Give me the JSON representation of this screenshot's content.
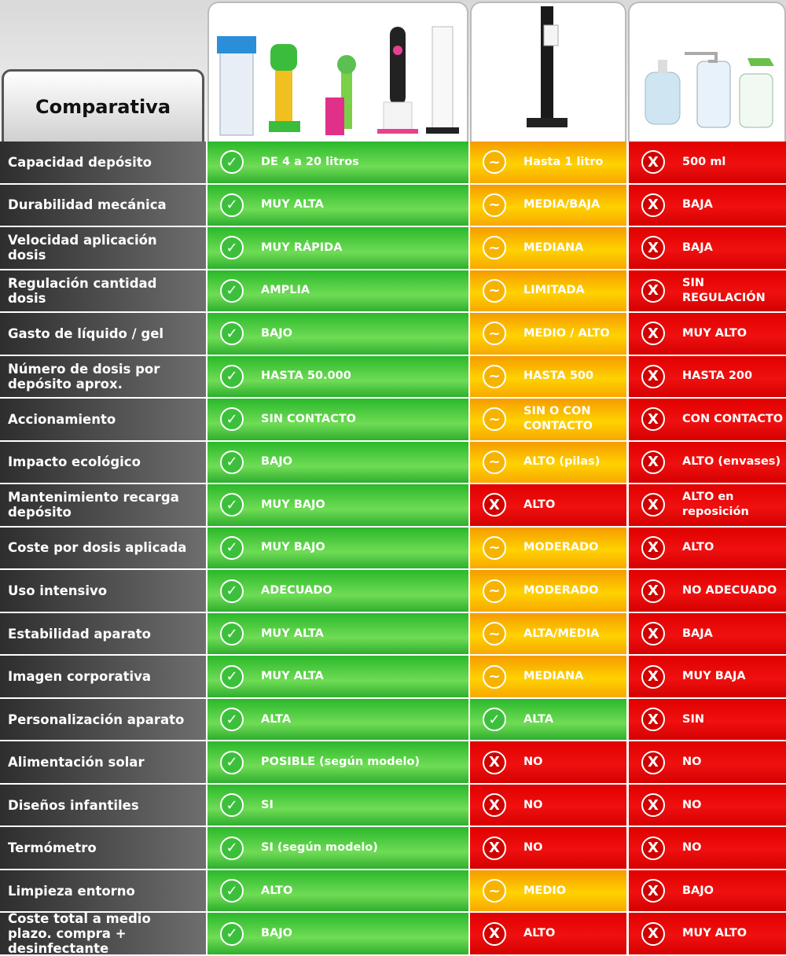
{
  "title": "Comparativa",
  "rows": [
    {
      "label": "Capacidad depósito",
      "cells": [
        {
          "icon": "✓",
          "text": "DE 4 a 20 litros"
        },
        {
          "icon": "~",
          "text": "Hasta 1 litro"
        },
        {
          "icon": "X",
          "text": "500 ml"
        }
      ]
    },
    {
      "label": "Durabilidad mecánica",
      "cells": [
        {
          "icon": "✓",
          "text": "MUY ALTA"
        },
        {
          "icon": "~",
          "text": "MEDIA/BAJA"
        },
        {
          "icon": "X",
          "text": "BAJA"
        }
      ]
    },
    {
      "label": "Velocidad aplicación dosis",
      "cells": [
        {
          "icon": "✓",
          "text": "MUY RÁPIDA"
        },
        {
          "icon": "~",
          "text": "MEDIANA"
        },
        {
          "icon": "X",
          "text": "BAJA"
        }
      ]
    },
    {
      "label": "Regulación cantidad dosis",
      "cells": [
        {
          "icon": "✓",
          "text": "AMPLIA"
        },
        {
          "icon": "~",
          "text": "LIMITADA"
        },
        {
          "icon": "X",
          "text": "SIN REGULACIÓN"
        }
      ]
    },
    {
      "label": "Gasto de líquido / gel",
      "cells": [
        {
          "icon": "✓",
          "text": "BAJO"
        },
        {
          "icon": "~",
          "text": "MEDIO / ALTO"
        },
        {
          "icon": "X",
          "text": "MUY ALTO"
        }
      ]
    },
    {
      "label": "Número de dosis por depósito aprox.",
      "cells": [
        {
          "icon": "✓",
          "text": "HASTA 50.000"
        },
        {
          "icon": "~",
          "text": "HASTA 500"
        },
        {
          "icon": "X",
          "text": "HASTA 200"
        }
      ]
    },
    {
      "label": "Accionamiento",
      "cells": [
        {
          "icon": "✓",
          "text": "SIN CONTACTO"
        },
        {
          "icon": "~",
          "text": "SIN O CON CONTACTO"
        },
        {
          "icon": "X",
          "text": "CON CONTACTO"
        }
      ]
    },
    {
      "label": "Impacto ecológico",
      "cells": [
        {
          "icon": "✓",
          "text": "BAJO"
        },
        {
          "icon": "~",
          "text": "ALTO (pilas)"
        },
        {
          "icon": "X",
          "text": "ALTO (envases)"
        }
      ]
    },
    {
      "label": "Mantenimiento recarga depósito",
      "cells": [
        {
          "icon": "✓",
          "text": "MUY BAJO"
        },
        {
          "icon": "X",
          "text": "ALTO"
        },
        {
          "icon": "X",
          "text": "ALTO en reposición"
        }
      ]
    },
    {
      "label": "Coste por dosis aplicada",
      "cells": [
        {
          "icon": "✓",
          "text": "MUY BAJO"
        },
        {
          "icon": "~",
          "text": "MODERADO"
        },
        {
          "icon": "X",
          "text": "ALTO"
        }
      ]
    },
    {
      "label": "Uso intensivo",
      "cells": [
        {
          "icon": "✓",
          "text": "ADECUADO"
        },
        {
          "icon": "~",
          "text": "MODERADO"
        },
        {
          "icon": "X",
          "text": "NO ADECUADO"
        }
      ]
    },
    {
      "label": "Estabilidad aparato",
      "cells": [
        {
          "icon": "✓",
          "text": "MUY ALTA"
        },
        {
          "icon": "~",
          "text": "ALTA/MEDIA"
        },
        {
          "icon": "X",
          "text": "BAJA"
        }
      ]
    },
    {
      "label": "Imagen corporativa",
      "cells": [
        {
          "icon": "✓",
          "text": "MUY ALTA"
        },
        {
          "icon": "~",
          "text": "MEDIANA"
        },
        {
          "icon": "X",
          "text": "MUY BAJA"
        }
      ]
    },
    {
      "label": "Personalización aparato",
      "cells": [
        {
          "icon": "✓",
          "text": "ALTA"
        },
        {
          "icon": "✓",
          "text": "ALTA"
        },
        {
          "icon": "X",
          "text": "SIN"
        }
      ]
    },
    {
      "label": "Alimentación solar",
      "cells": [
        {
          "icon": "✓",
          "text": "POSIBLE (según modelo)"
        },
        {
          "icon": "X",
          "text": "NO"
        },
        {
          "icon": "X",
          "text": "NO"
        }
      ]
    },
    {
      "label": "Diseños infantiles",
      "cells": [
        {
          "icon": "✓",
          "text": "SI"
        },
        {
          "icon": "X",
          "text": "NO"
        },
        {
          "icon": "X",
          "text": "NO"
        }
      ]
    },
    {
      "label": "Termómetro",
      "cells": [
        {
          "icon": "✓",
          "text": "SI (según modelo)"
        },
        {
          "icon": "X",
          "text": "NO"
        },
        {
          "icon": "X",
          "text": "NO"
        }
      ]
    },
    {
      "label": "Limpieza entorno",
      "cells": [
        {
          "icon": "✓",
          "text": "ALTO"
        },
        {
          "icon": "~",
          "text": "MEDIO"
        },
        {
          "icon": "X",
          "text": "BAJO"
        }
      ]
    },
    {
      "label": "Coste total a medio plazo. compra + desinfectante",
      "cells": [
        {
          "icon": "✓",
          "text": "BAJO"
        },
        {
          "icon": "X",
          "text": "ALTO"
        },
        {
          "icon": "X",
          "text": "MUY ALTO"
        }
      ]
    }
  ]
}
